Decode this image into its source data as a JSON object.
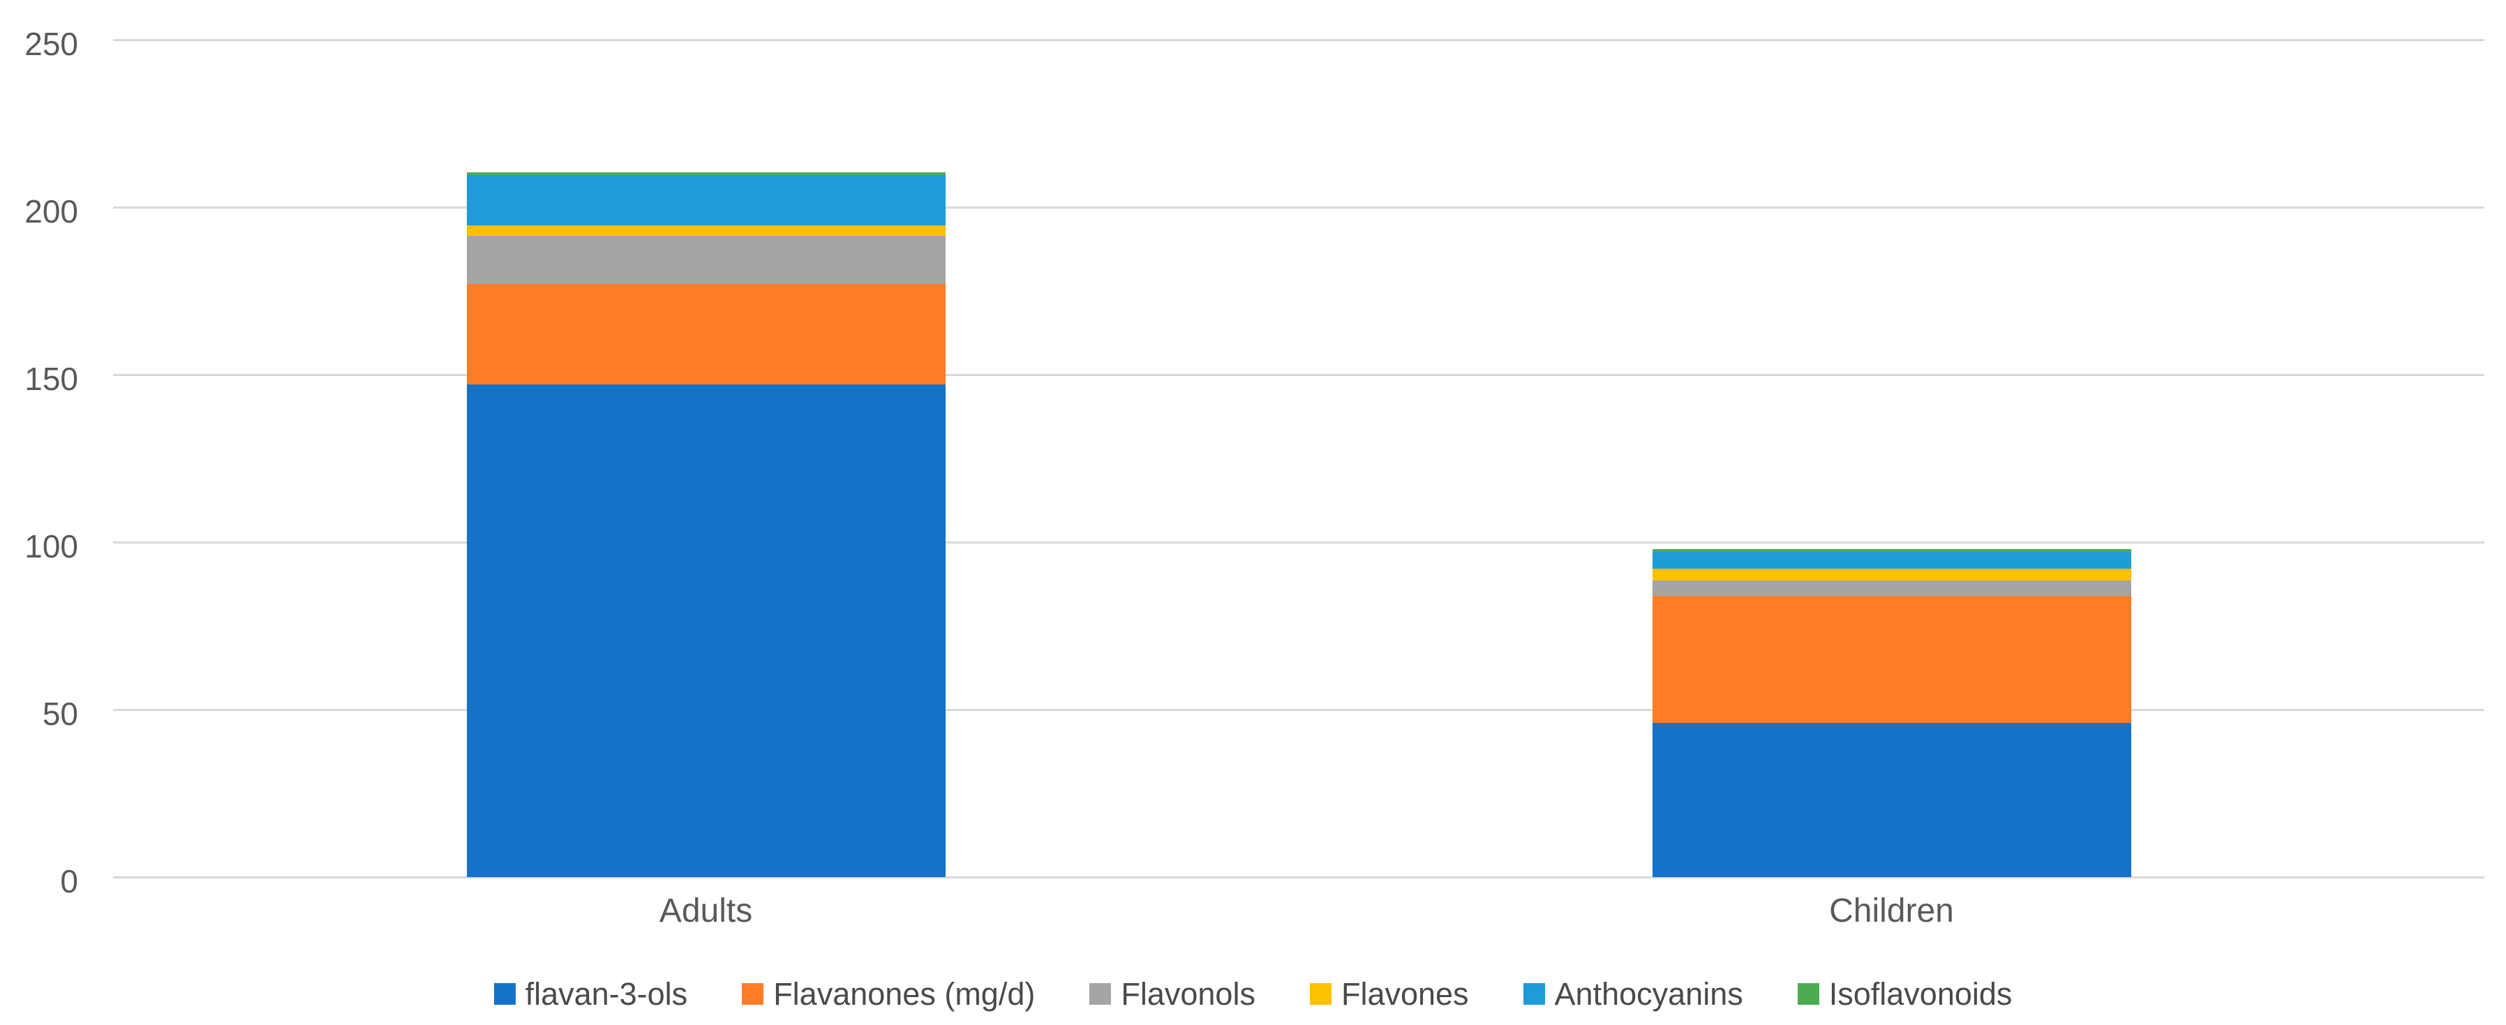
{
  "chart_data": {
    "type": "bar",
    "stacked": true,
    "title": "",
    "xlabel": "",
    "ylabel": "",
    "categories": [
      "Adults",
      "Children"
    ],
    "series": [
      {
        "name": "flavan-3-ols",
        "color": "#1572C8",
        "values": [
          147,
          46
        ]
      },
      {
        "name": "Flavanones (mg/d)",
        "color": "#FC7D26",
        "values": [
          30,
          38
        ]
      },
      {
        "name": "Flavonols",
        "color": "#A5A5A5",
        "values": [
          14.5,
          4.5
        ]
      },
      {
        "name": "Flavones",
        "color": "#FFC000",
        "values": [
          3,
          3.5
        ]
      },
      {
        "name": "Anthocyanins",
        "color": "#1E9CD8",
        "values": [
          15,
          5
        ]
      },
      {
        "name": "Isoflavonoids",
        "color": "#4BAD4F",
        "values": [
          1,
          1
        ]
      }
    ],
    "totals": [
      210.5,
      98
    ],
    "ylim": [
      0,
      250
    ],
    "yticks": [
      0,
      50,
      100,
      150,
      200,
      250
    ],
    "grid": true,
    "gridline_color": "#D9D9D9",
    "axis_text_color": "#595959",
    "legend_text_color": "#4A4A4A",
    "background": "#FFFFFF",
    "legend_position": "bottom"
  }
}
